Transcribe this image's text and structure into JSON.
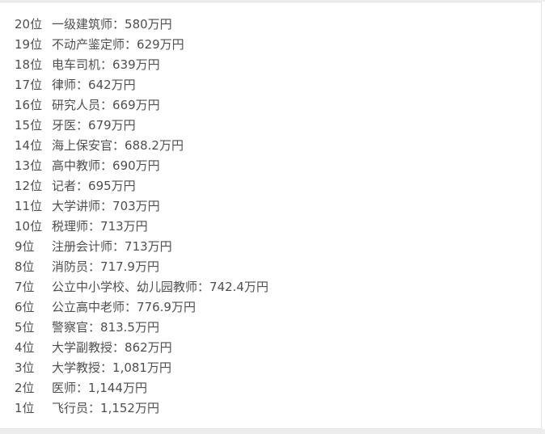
{
  "card": {
    "separator": "：",
    "rows": [
      {
        "rank": "20位",
        "name": "一级建筑师",
        "salary": "580万円"
      },
      {
        "rank": "19位",
        "name": "不动产鉴定师",
        "salary": "629万円"
      },
      {
        "rank": "18位",
        "name": "电车司机",
        "salary": "639万円"
      },
      {
        "rank": "17位",
        "name": "律师",
        "salary": "642万円"
      },
      {
        "rank": "16位",
        "name": "研究人员",
        "salary": "669万円"
      },
      {
        "rank": "15位",
        "name": "牙医",
        "salary": "679万円"
      },
      {
        "rank": "14位",
        "name": "海上保安官",
        "salary": "688.2万円"
      },
      {
        "rank": "13位",
        "name": "高中教师",
        "salary": "690万円"
      },
      {
        "rank": "12位",
        "name": "记者",
        "salary": "695万円"
      },
      {
        "rank": "11位",
        "name": "大学讲师",
        "salary": "703万円"
      },
      {
        "rank": "10位",
        "name": "税理师",
        "salary": "713万円"
      },
      {
        "rank": "9位",
        "name": "注册会计师",
        "salary": "713万円"
      },
      {
        "rank": "8位",
        "name": "消防员",
        "salary": "717.9万円"
      },
      {
        "rank": "7位",
        "name": "公立中小学校、幼儿园教师",
        "salary": "742.4万円"
      },
      {
        "rank": "6位",
        "name": "公立高中老师",
        "salary": "776.9万円"
      },
      {
        "rank": "5位",
        "name": "警察官",
        "salary": "813.5万円"
      },
      {
        "rank": "4位",
        "name": "大学副教授",
        "salary": "862万円"
      },
      {
        "rank": "3位",
        "name": "大学教授",
        "salary": "1,081万円"
      },
      {
        "rank": "2位",
        "name": "医师",
        "salary": "1,144万円"
      },
      {
        "rank": "1位",
        "name": "飞行员",
        "salary": "1,152万円"
      }
    ]
  },
  "colors": {
    "text": "#4f4f4f",
    "card_background": "#ffffff",
    "card_border": "#e3e3e3",
    "page_strip": "#ededed"
  }
}
